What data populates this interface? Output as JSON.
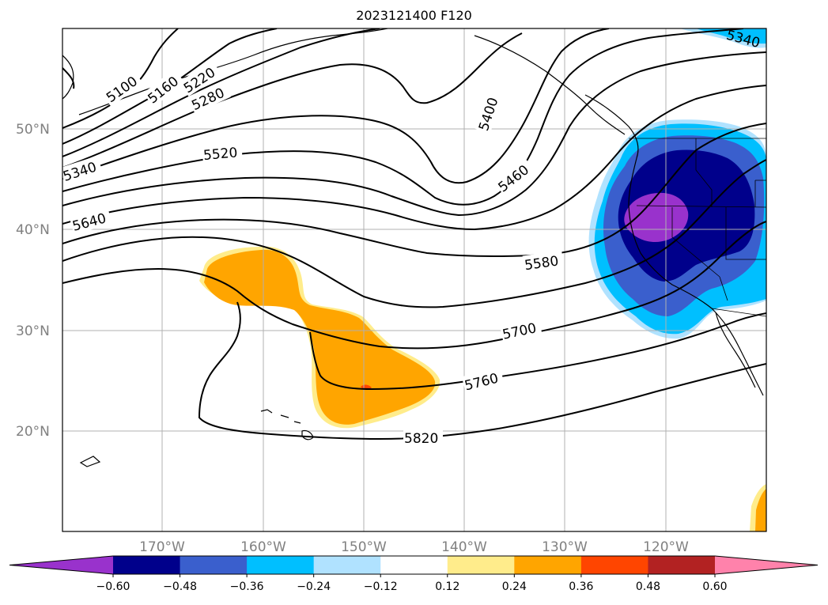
{
  "title": "2023121400 F120",
  "map": {
    "lat_labels": [
      "50°N",
      "40°N",
      "30°N",
      "20°N"
    ],
    "lat_values": [
      50,
      40,
      30,
      20
    ],
    "lon_labels": [
      "170°W",
      "160°W",
      "150°W",
      "140°W",
      "130°W",
      "120°W"
    ],
    "lon_values": [
      -170,
      -160,
      -150,
      -140,
      -130,
      -120
    ],
    "extent": {
      "lon_min": -180,
      "lon_max": -110,
      "lat_min": 10,
      "lat_max": 60
    },
    "gridlines": true
  },
  "contours": {
    "units_note": "",
    "labels": [
      {
        "text": "5100"
      },
      {
        "text": "5160"
      },
      {
        "text": "5220"
      },
      {
        "text": "5280"
      },
      {
        "text": "5340"
      },
      {
        "text": "5400"
      },
      {
        "text": "5460"
      },
      {
        "text": "5520"
      },
      {
        "text": "5580"
      },
      {
        "text": "5640"
      },
      {
        "text": "5700"
      },
      {
        "text": "5760"
      },
      {
        "text": "5820"
      },
      {
        "text": "5340"
      }
    ]
  },
  "colorbar": {
    "ticks": [
      "−0.60",
      "−0.48",
      "−0.36",
      "−0.24",
      "−0.12",
      "0.12",
      "0.24",
      "0.36",
      "0.48",
      "0.60"
    ],
    "colors": [
      "#9932cc",
      "#00008b",
      "#3a5fcd",
      "#00bfff",
      "#b0e2ff",
      "#ffffff",
      "#ffec8b",
      "#ffa500",
      "#ff4500",
      "#b22222",
      "#ff82ab",
      "#ff82ab"
    ],
    "extend": "both"
  },
  "colors": {
    "positive_main": "#ffa500",
    "positive_light": "#ffec8b",
    "positive_strong": "#ff4500",
    "negative_dark": "#00008b",
    "negative_mid": "#3a5fcd",
    "negative_light": "#00bfff",
    "negative_faint": "#b0e2ff",
    "negative_min": "#9932cc"
  }
}
